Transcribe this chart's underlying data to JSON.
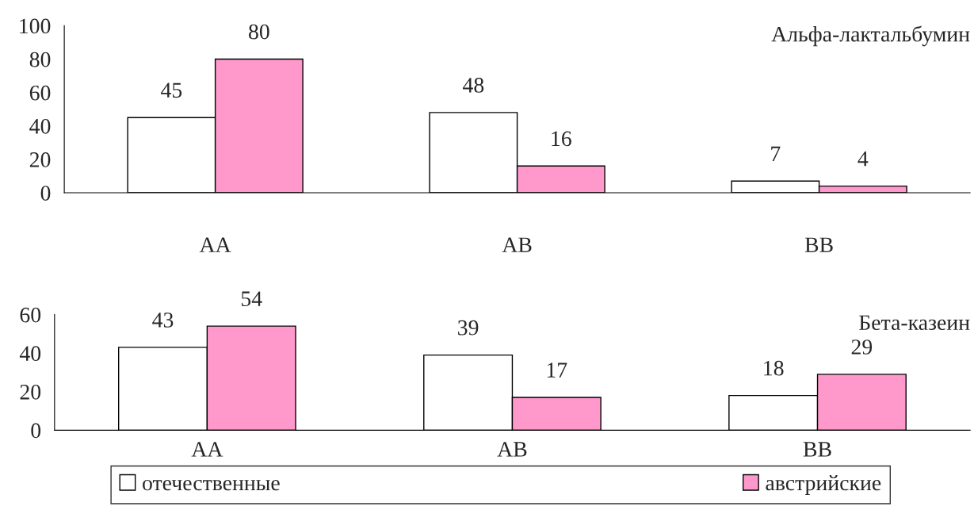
{
  "chart_data": [
    {
      "type": "bar",
      "title": "Альфа-лактальбумин",
      "categories": [
        "AA",
        "AB",
        "BB"
      ],
      "ylim": [
        0,
        100
      ],
      "yticks": [
        0,
        20,
        40,
        60,
        80,
        100
      ],
      "data_labels": true,
      "grid": false,
      "legend": "bottom",
      "series": [
        {
          "name": "отечественные",
          "color": "#ffffff",
          "values": [
            45,
            48,
            7
          ]
        },
        {
          "name": "австрийские",
          "color": "#ff99cc",
          "values": [
            80,
            16,
            4
          ]
        }
      ]
    },
    {
      "type": "bar",
      "title": "Бета-казеин",
      "categories": [
        "AA",
        "AB",
        "BB"
      ],
      "ylim": [
        0,
        60
      ],
      "yticks": [
        0,
        20,
        40,
        60
      ],
      "data_labels": true,
      "grid": false,
      "legend": "bottom",
      "series": [
        {
          "name": "отечественные",
          "color": "#ffffff",
          "values": [
            43,
            39,
            18
          ]
        },
        {
          "name": "австрийские",
          "color": "#ff99cc",
          "values": [
            54,
            17,
            29
          ]
        }
      ]
    }
  ]
}
